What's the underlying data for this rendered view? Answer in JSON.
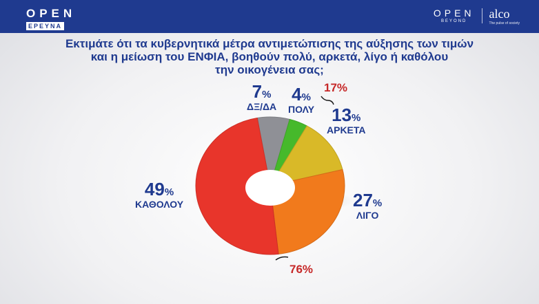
{
  "header": {
    "logo_left_top": "OPEN",
    "logo_left_bottom": "ΕΡΕΥΝΑ",
    "logo_right_top": "OPEN",
    "logo_right_bottom": "BEYOND",
    "partner_logo": "alco",
    "partner_tagline": "The pulse of society"
  },
  "question": {
    "line1": "Εκτιμάτε ότι τα κυβερνητικά μέτρα αντιμετώπισης της αύξησης των τιμών",
    "line2": "και η μείωση του ΕΝΦΙΑ, βοηθούν πολύ, αρκετά, λίγο ή καθόλου",
    "line3": "την οικογένεια σας;"
  },
  "chart_data": {
    "type": "pie",
    "unit": "%",
    "categories": [
      "ΔΞ/ΔΑ",
      "ΠΟΛΥ",
      "ΑΡΚΕΤΑ",
      "ΛΙΓΟ",
      "ΚΑΘΟΛΟΥ"
    ],
    "values": [
      7,
      4,
      13,
      27,
      49
    ],
    "colors": [
      "#8f9096",
      "#46b92b",
      "#d9b928",
      "#f17a1c",
      "#e8352b"
    ],
    "groups": [
      {
        "members": [
          "ΠΟΛΥ",
          "ΑΡΚΕΤΑ"
        ],
        "value": "17%"
      },
      {
        "members": [
          "ΛΙΓΟ",
          "ΚΑΘΟΛΟΥ"
        ],
        "value": "76%"
      }
    ]
  },
  "labels": {
    "dkna": {
      "value": "7",
      "pct": "%",
      "name": "ΔΞ/ΔΑ"
    },
    "poly": {
      "value": "4",
      "pct": "%",
      "name": "ΠΟΛΥ"
    },
    "arketa": {
      "value": "13",
      "pct": "%",
      "name": "ΑΡΚΕΤΑ"
    },
    "ligo": {
      "value": "27",
      "pct": "%",
      "name": "ΛΙΓΟ"
    },
    "katholou": {
      "value": "49",
      "pct": "%",
      "name": "ΚΑΘΟΛΟΥ"
    },
    "group_top": "17%",
    "group_bottom": "76%"
  }
}
